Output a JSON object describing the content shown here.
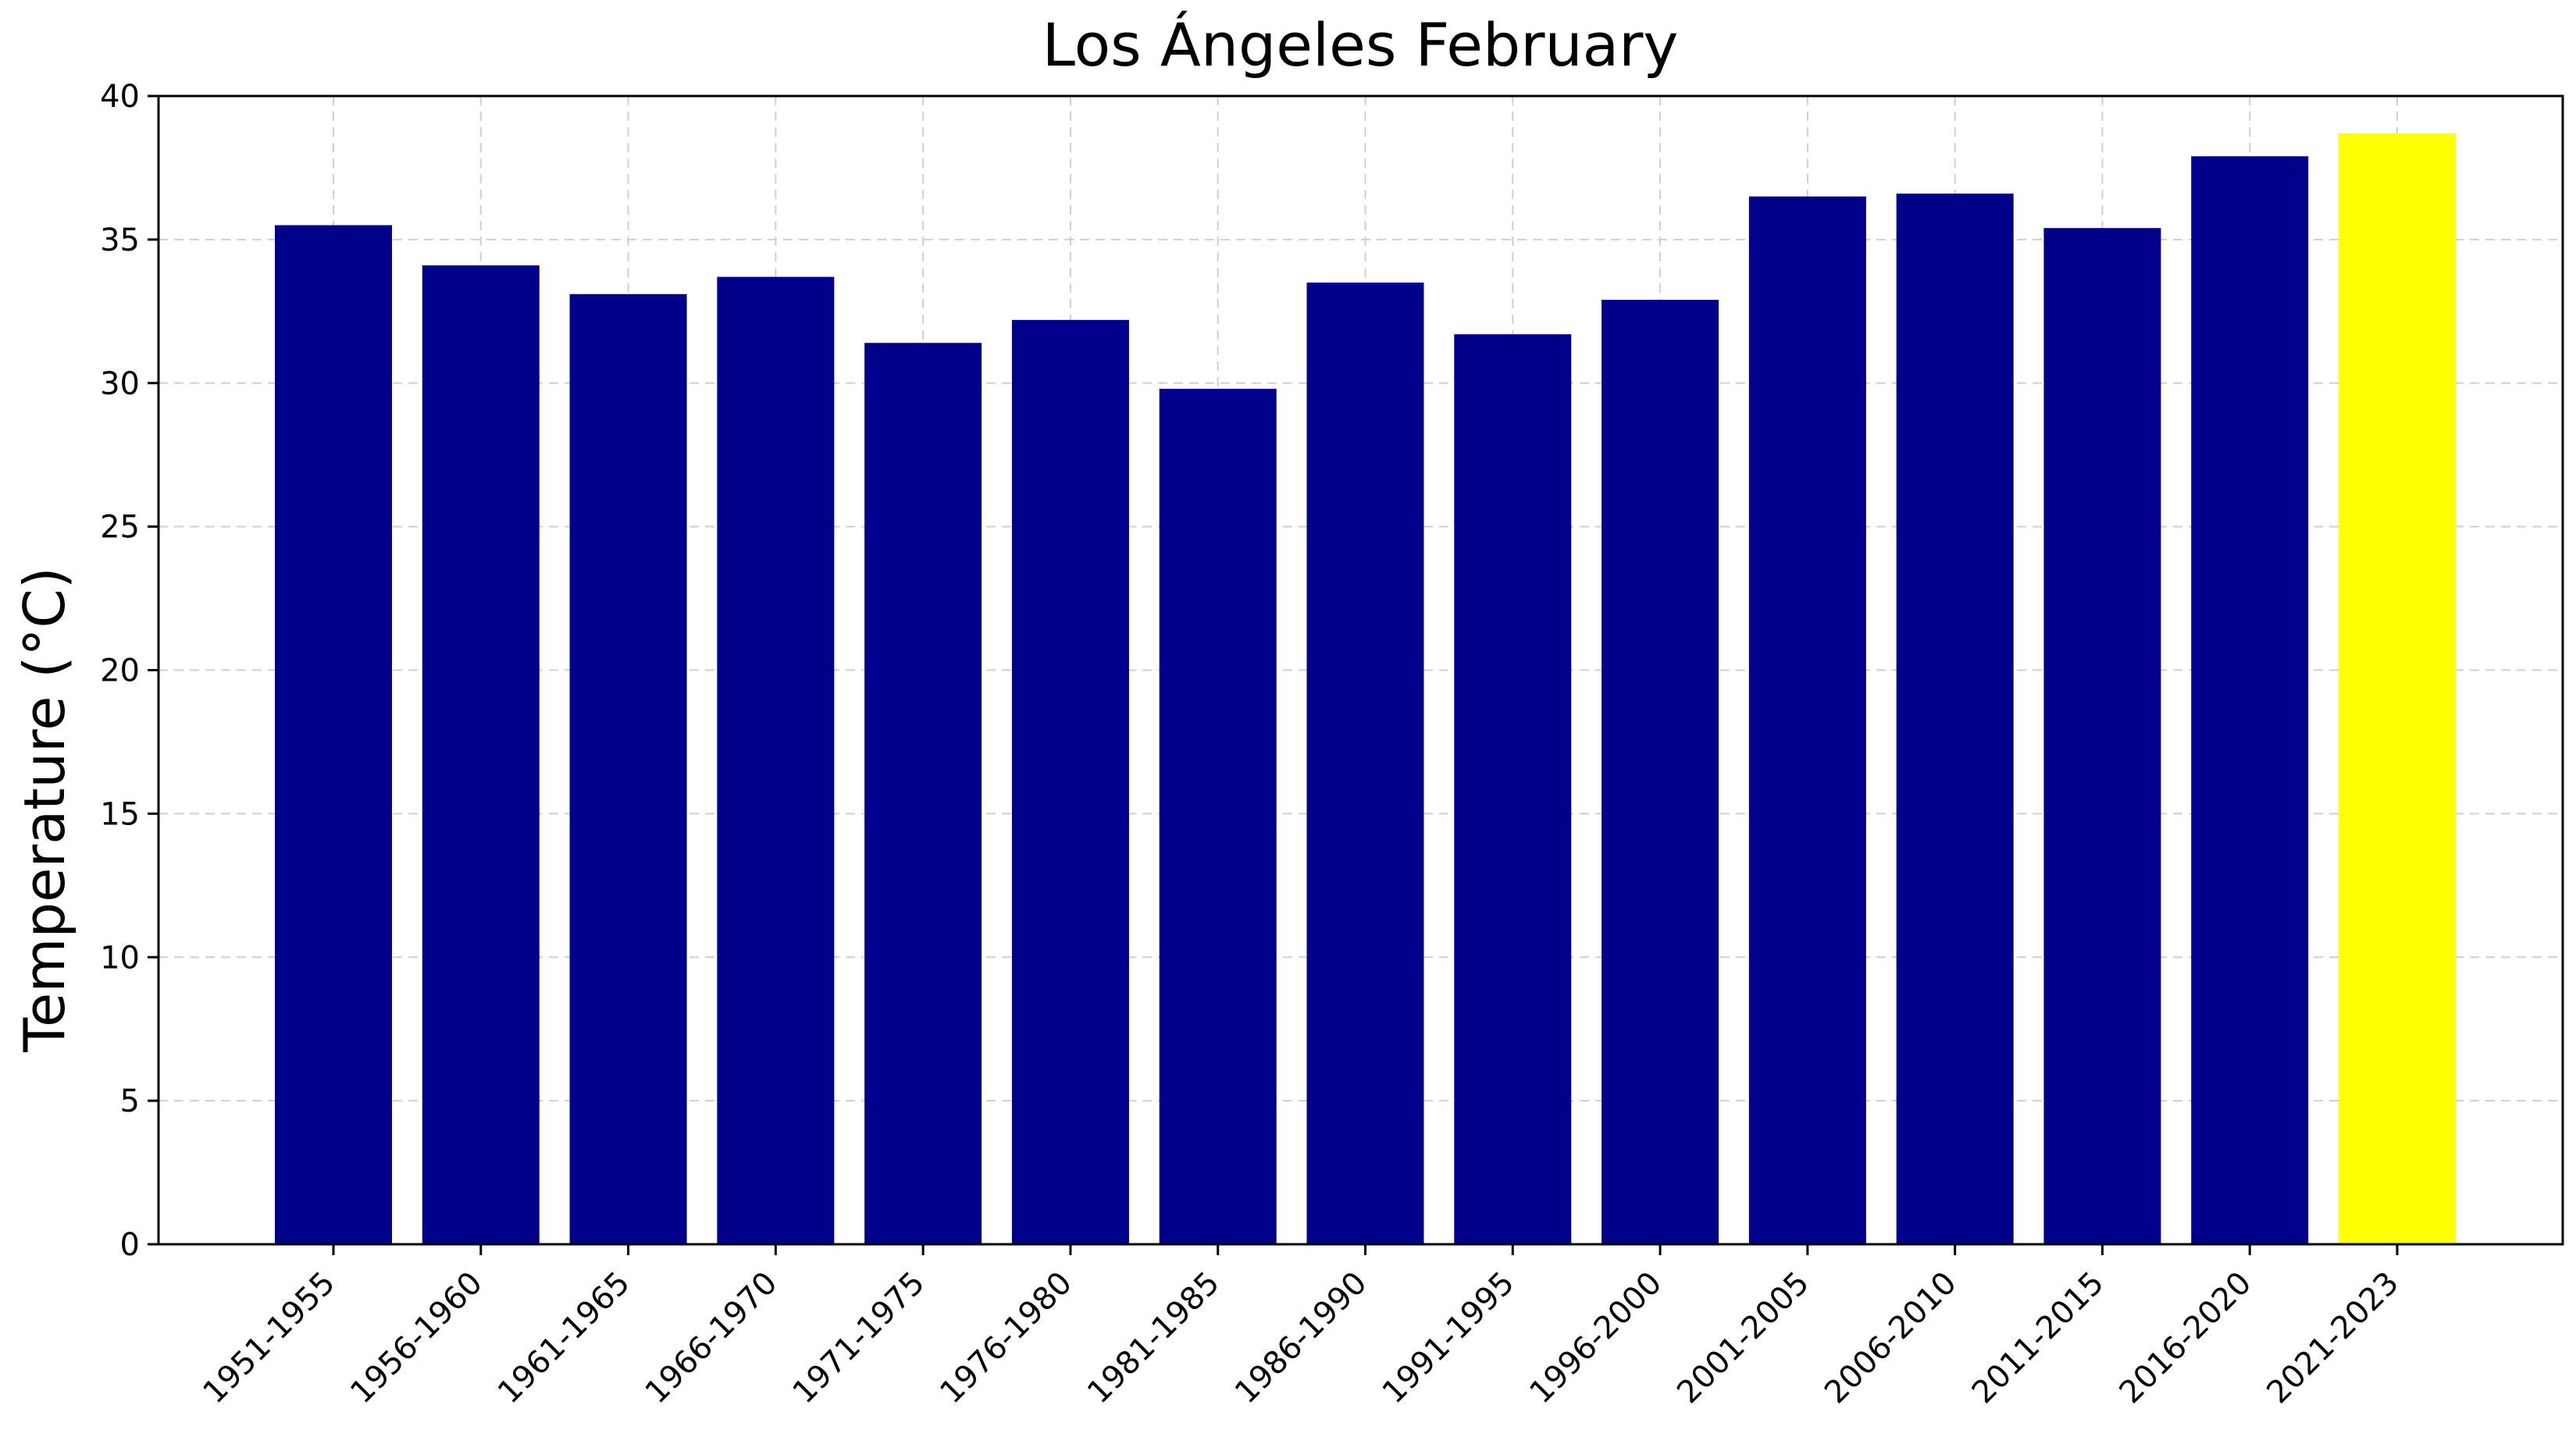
{
  "chart_data": {
    "type": "bar",
    "title": "Los Ángeles February",
    "xlabel": "",
    "ylabel": "Temperature (°C)",
    "ylim": [
      0,
      40
    ],
    "yticks": [
      0,
      5,
      10,
      15,
      20,
      25,
      30,
      35,
      40
    ],
    "grid": true,
    "categories": [
      "1951-1955",
      "1956-1960",
      "1961-1965",
      "1966-1970",
      "1971-1975",
      "1976-1980",
      "1981-1985",
      "1986-1990",
      "1991-1995",
      "1996-2000",
      "2001-2005",
      "2006-2010",
      "2011-2015",
      "2016-2020",
      "2021-2023"
    ],
    "values": [
      35.5,
      34.1,
      33.1,
      33.7,
      31.4,
      32.2,
      29.8,
      33.5,
      31.7,
      32.9,
      36.5,
      36.6,
      35.4,
      37.9,
      38.7
    ],
    "colors": {
      "default_bar": "#00008B",
      "highlight_bar": "#FFFF00",
      "highlight_category": "2021-2023"
    }
  }
}
